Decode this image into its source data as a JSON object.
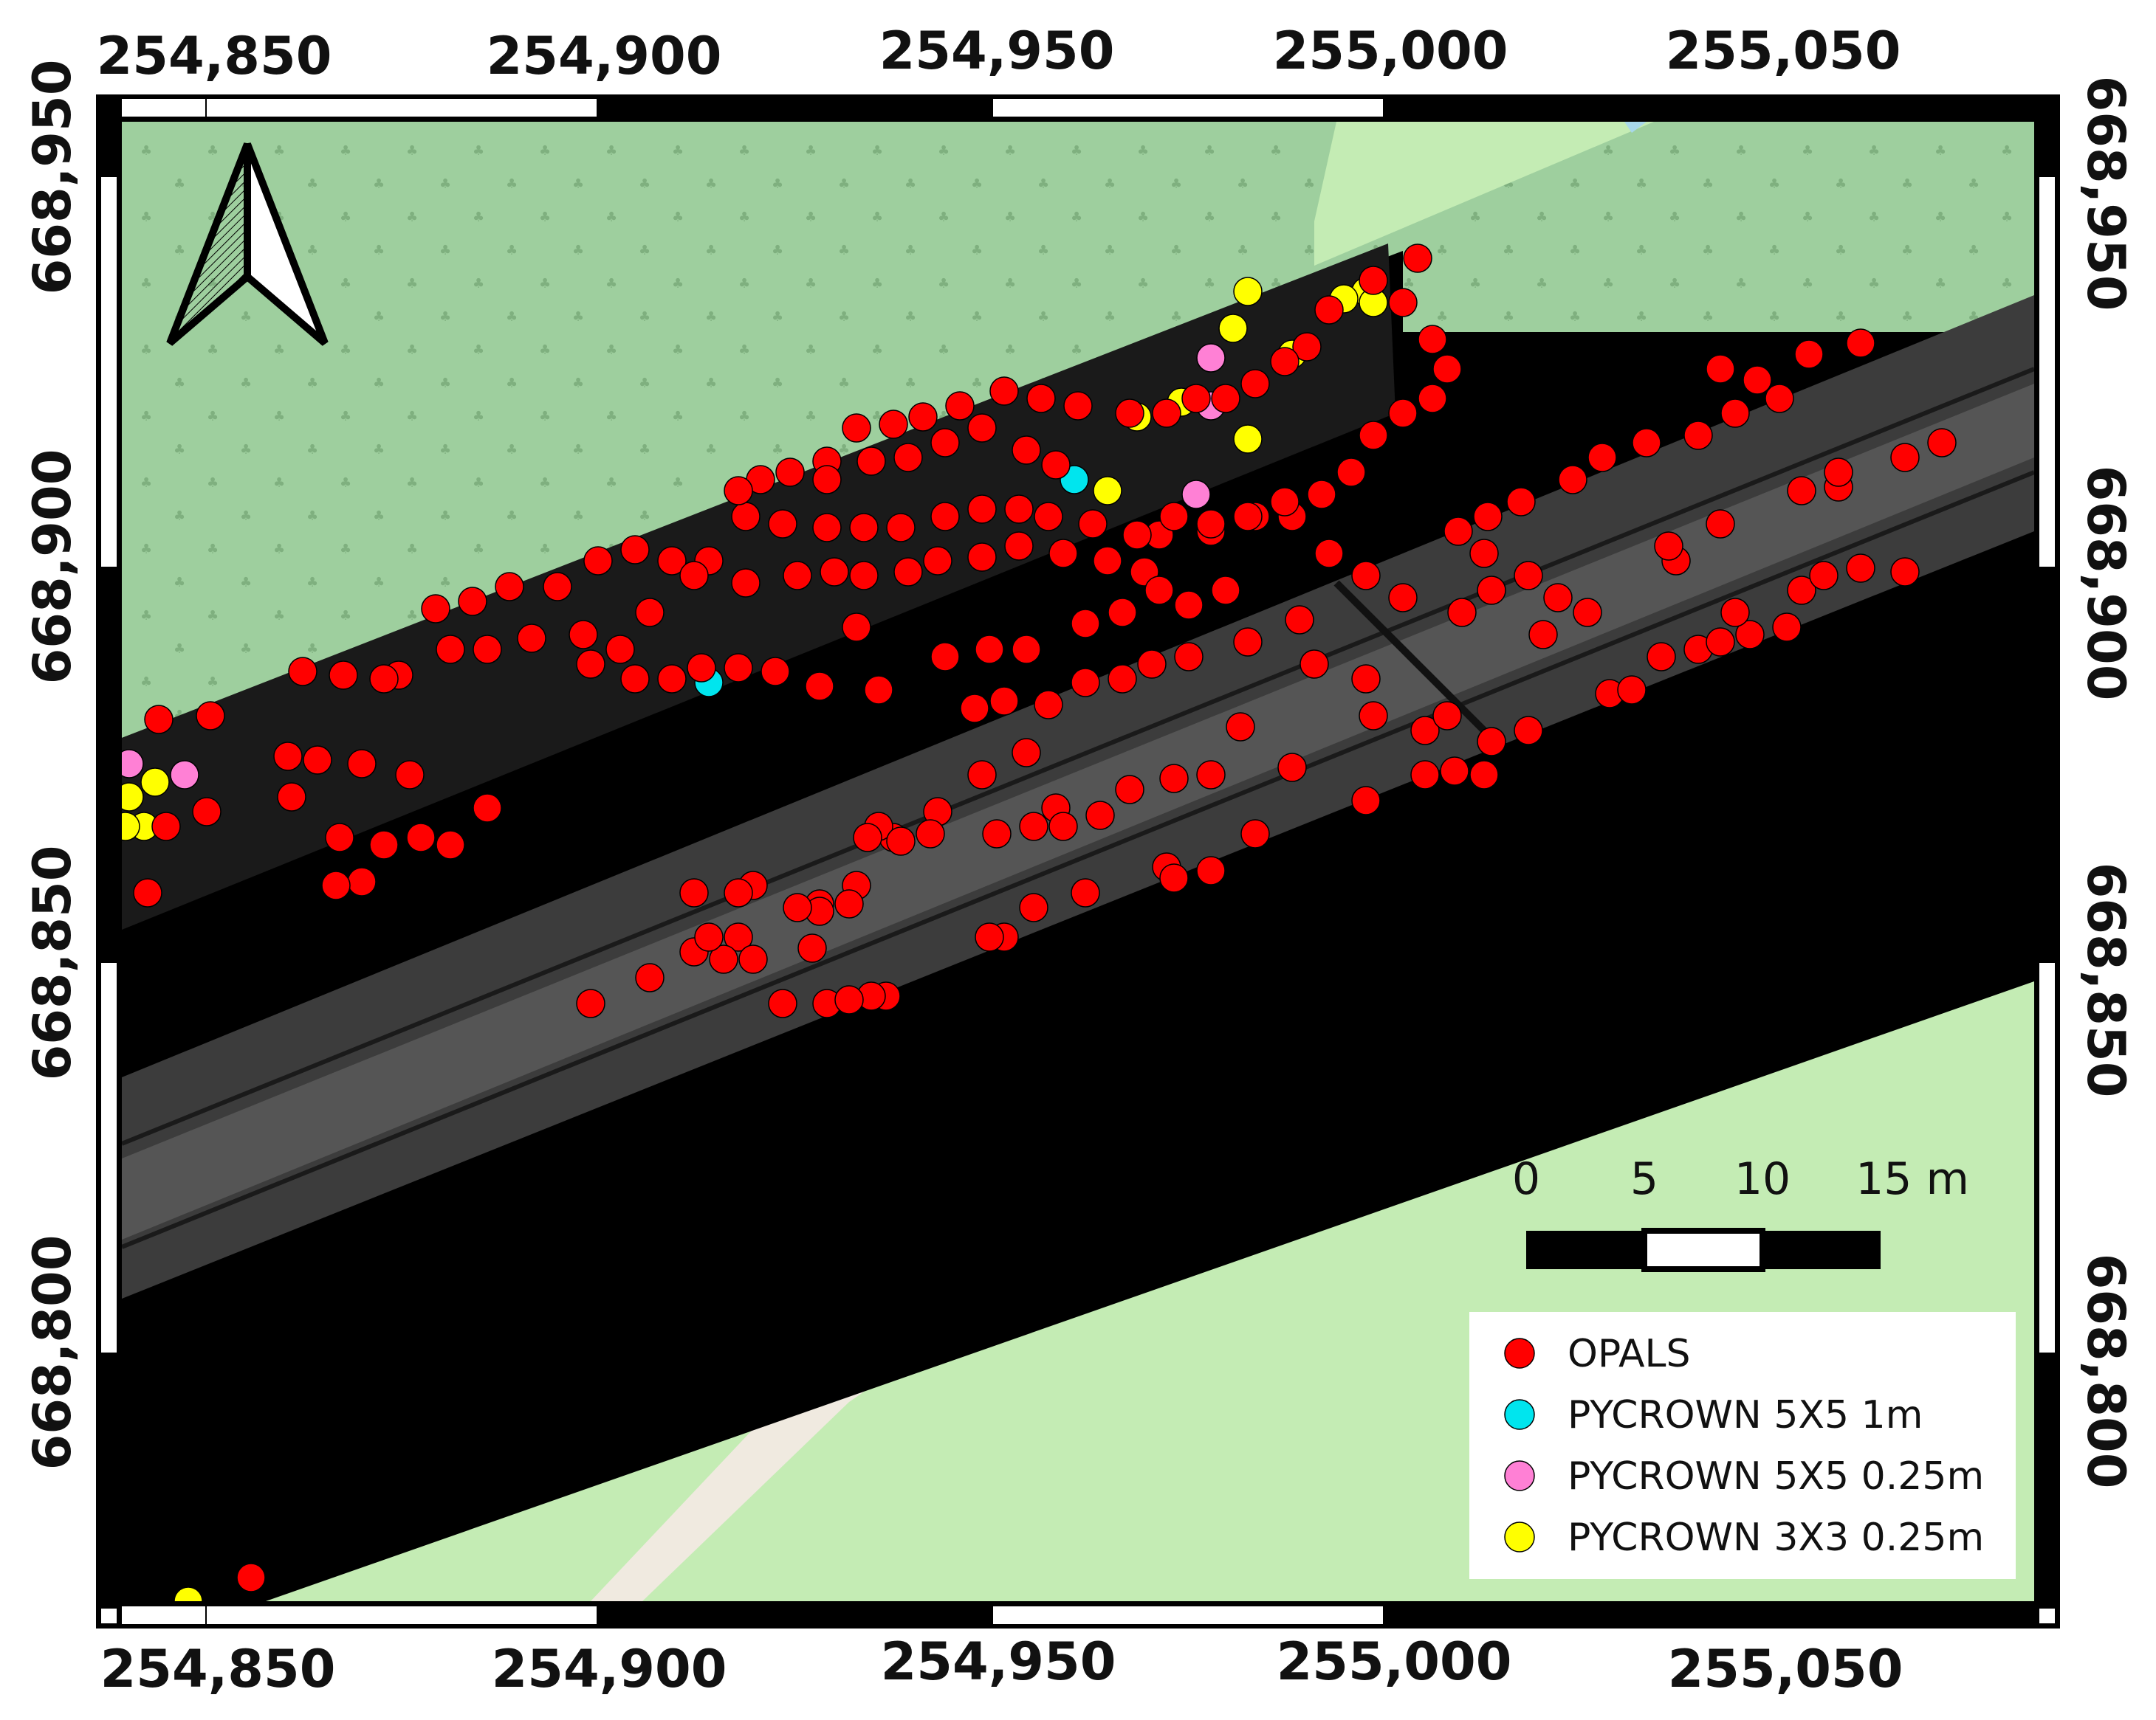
{
  "map": {
    "top_labels": [
      "254,850",
      "254,900",
      "254,950",
      "255,000",
      "255,050"
    ],
    "bottom_labels": [
      "254,850",
      "254,900",
      "254,950",
      "255,000",
      "255,050"
    ],
    "left_labels": [
      "668,950",
      "668,900",
      "668,850",
      "668,800"
    ],
    "right_labels": [
      "668,950",
      "668,900",
      "668,850",
      "668,800"
    ],
    "north_arrow": "north-arrow-icon",
    "scale_bar": {
      "labels": [
        "0",
        "5",
        "10",
        "15 m"
      ]
    },
    "legend": {
      "items": [
        {
          "label": "OPALS",
          "color": "#ff0000"
        },
        {
          "label": "PYCROWN 5X5 1m",
          "color": "#00e5ee"
        },
        {
          "label": "PYCROWN 5X5 0.25m",
          "color": "#ff80d5"
        },
        {
          "label": "PYCROWN 3X3 0.25m",
          "color": "#ffff00"
        }
      ]
    },
    "colors": {
      "forest_green": "#9ecf9e",
      "grass_green": "#c4ecb4",
      "road_bare": "#f0eae0",
      "water": "#a8d8ea",
      "raster_dark": "#000000",
      "road_gray": "#4a4a4a",
      "opals": "#ff0000",
      "pycrown_5x5_1m": "#00e5ee",
      "pycrown_5x5_025m": "#ff80d5",
      "pycrown_3x3_025m": "#ffff00"
    }
  }
}
